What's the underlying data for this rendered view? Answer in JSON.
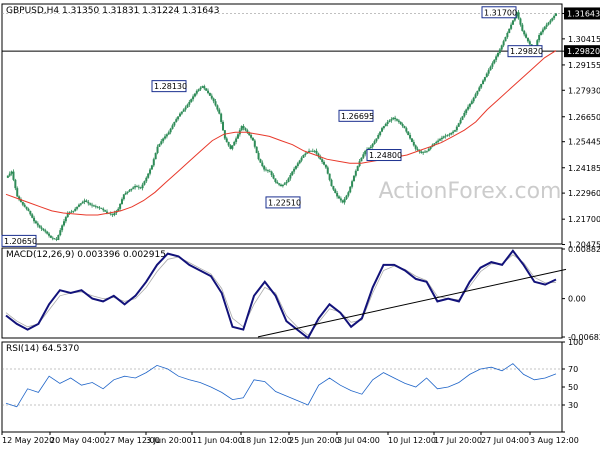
{
  "chart_data": [
    {
      "type": "candlestick",
      "panel": "price",
      "symbol_line": "GBPUSD,H4  1.31350 1.31831 1.31224 1.31643",
      "watermark": "ActionForex.com",
      "colors": {
        "candle": "#2e8b57",
        "ma": "#e8392b",
        "last_price_bg": "#000000"
      },
      "y_ticks": [
        "1.31643",
        "1.30415",
        "1.29820",
        "1.29155",
        "1.27930",
        "1.26650",
        "1.25445",
        "1.24185",
        "1.22960",
        "1.21700",
        "1.20475"
      ],
      "ylim": [
        1.205,
        1.321
      ],
      "last_price": 1.31643,
      "horizontal_level": 1.2982,
      "annotations": [
        {
          "label": "1.20650",
          "value": 1.2065
        },
        {
          "label": "1.28130",
          "value": 1.2813
        },
        {
          "label": "1.22510",
          "value": 1.2251
        },
        {
          "label": "1.26695",
          "value": 1.26695
        },
        {
          "label": "1.24800",
          "value": 1.248
        },
        {
          "label": "1.31700",
          "value": 1.317
        },
        {
          "label": "1.29820",
          "value": 1.2982
        }
      ],
      "close_path": [
        1.237,
        1.24,
        1.228,
        1.224,
        1.221,
        1.216,
        1.213,
        1.211,
        1.208,
        1.207,
        1.214,
        1.22,
        1.221,
        1.224,
        1.226,
        1.224,
        1.223,
        1.222,
        1.22,
        1.219,
        1.222,
        1.229,
        1.231,
        1.233,
        1.232,
        1.237,
        1.243,
        1.252,
        1.256,
        1.259,
        1.264,
        1.268,
        1.271,
        1.275,
        1.279,
        1.2813,
        1.278,
        1.274,
        1.268,
        1.256,
        1.251,
        1.256,
        1.262,
        1.259,
        1.255,
        1.246,
        1.241,
        1.24,
        1.235,
        1.233,
        1.235,
        1.24,
        1.244,
        1.248,
        1.25,
        1.25,
        1.246,
        1.242,
        1.233,
        1.228,
        1.2251,
        1.23,
        1.238,
        1.245,
        1.25,
        1.252,
        1.256,
        1.261,
        1.264,
        1.266,
        1.264,
        1.261,
        1.256,
        1.251,
        1.249,
        1.25,
        1.253,
        1.255,
        1.257,
        1.258,
        1.26,
        1.265,
        1.27,
        1.274,
        1.279,
        1.284,
        1.289,
        1.294,
        1.299,
        1.305,
        1.311,
        1.317,
        1.308,
        1.303,
        1.2985,
        1.306,
        1.31,
        1.313,
        1.3164
      ],
      "ma_path": [
        1.229,
        1.227,
        1.225,
        1.223,
        1.221,
        1.22,
        1.2195,
        1.219,
        1.219,
        1.22,
        1.221,
        1.223,
        1.226,
        1.23,
        1.235,
        1.24,
        1.245,
        1.25,
        1.255,
        1.258,
        1.259,
        1.259,
        1.258,
        1.257,
        1.255,
        1.253,
        1.25,
        1.248,
        1.246,
        1.245,
        1.244,
        1.244,
        1.245,
        1.246,
        1.247,
        1.248,
        1.25,
        1.252,
        1.254,
        1.257,
        1.26,
        1.264,
        1.27,
        1.275,
        1.28,
        1.285,
        1.29,
        1.295,
        1.2985
      ]
    },
    {
      "type": "line",
      "panel": "macd",
      "title": "MACD(12,26,9) 0.003396 0.002915",
      "y_ticks": [
        "0.008824",
        "0.00",
        "-0.006825"
      ],
      "ylim": [
        -0.007,
        0.009
      ],
      "macd": [
        -0.003,
        -0.0045,
        -0.0055,
        -0.0045,
        -0.001,
        0.0015,
        0.001,
        0.0015,
        0.0,
        -0.0005,
        0.0005,
        -0.001,
        0.0005,
        0.003,
        0.006,
        0.008,
        0.0075,
        0.006,
        0.005,
        0.004,
        0.001,
        -0.005,
        -0.0055,
        0.0005,
        0.003,
        0.0005,
        -0.004,
        -0.0055,
        -0.007,
        -0.0035,
        -0.001,
        -0.0025,
        -0.005,
        -0.0035,
        0.002,
        0.006,
        0.006,
        0.005,
        0.0035,
        0.003,
        -0.0005,
        0.0,
        -0.0005,
        0.003,
        0.0055,
        0.0065,
        0.006,
        0.0085,
        0.006,
        0.003,
        0.0025,
        0.0034
      ],
      "signal": [
        -0.0025,
        -0.004,
        -0.005,
        -0.0045,
        -0.002,
        0.0005,
        0.001,
        0.0012,
        0.0005,
        0.0,
        0.0002,
        -0.0005,
        0.0,
        0.002,
        0.0048,
        0.007,
        0.0074,
        0.0064,
        0.0054,
        0.0044,
        0.0018,
        -0.0035,
        -0.005,
        -0.001,
        0.002,
        0.001,
        -0.003,
        -0.005,
        -0.0065,
        -0.0042,
        -0.0018,
        -0.0024,
        -0.0042,
        -0.0038,
        0.001,
        0.005,
        0.0058,
        0.0052,
        0.004,
        0.0032,
        0.0004,
        0.0,
        -0.0002,
        0.0022,
        0.0048,
        0.0062,
        0.0062,
        0.0078,
        0.0064,
        0.0038,
        0.0028,
        0.0029
      ],
      "trendline": [
        [
          -0.0068,
          0.005
        ]
      ]
    },
    {
      "type": "line",
      "panel": "rsi",
      "title": "RSI(14) 64.5370",
      "y_ticks": [
        "100",
        "70",
        "50",
        "30",
        "0"
      ],
      "ylim": [
        0,
        100
      ],
      "levels": [
        70,
        30
      ],
      "values": [
        32,
        28,
        48,
        44,
        62,
        54,
        60,
        52,
        55,
        48,
        58,
        62,
        60,
        66,
        74,
        70,
        62,
        58,
        55,
        50,
        44,
        36,
        38,
        58,
        56,
        45,
        40,
        35,
        30,
        52,
        60,
        52,
        46,
        42,
        58,
        66,
        60,
        54,
        50,
        60,
        48,
        50,
        55,
        64,
        70,
        72,
        68,
        76,
        64,
        58,
        60,
        64.5
      ]
    }
  ],
  "x_axis_labels": [
    "12 May 2020",
    "20 May 04:00",
    "27 May 12:00",
    "3 Jun 20:00",
    "11 Jun 04:00",
    "18 Jun 12:00",
    "25 Jun 20:00",
    "3 Jul 04:00",
    "10 Jul 12:00",
    "17 Jul 20:00",
    "27 Jul 04:00",
    "3 Aug 12:00"
  ]
}
